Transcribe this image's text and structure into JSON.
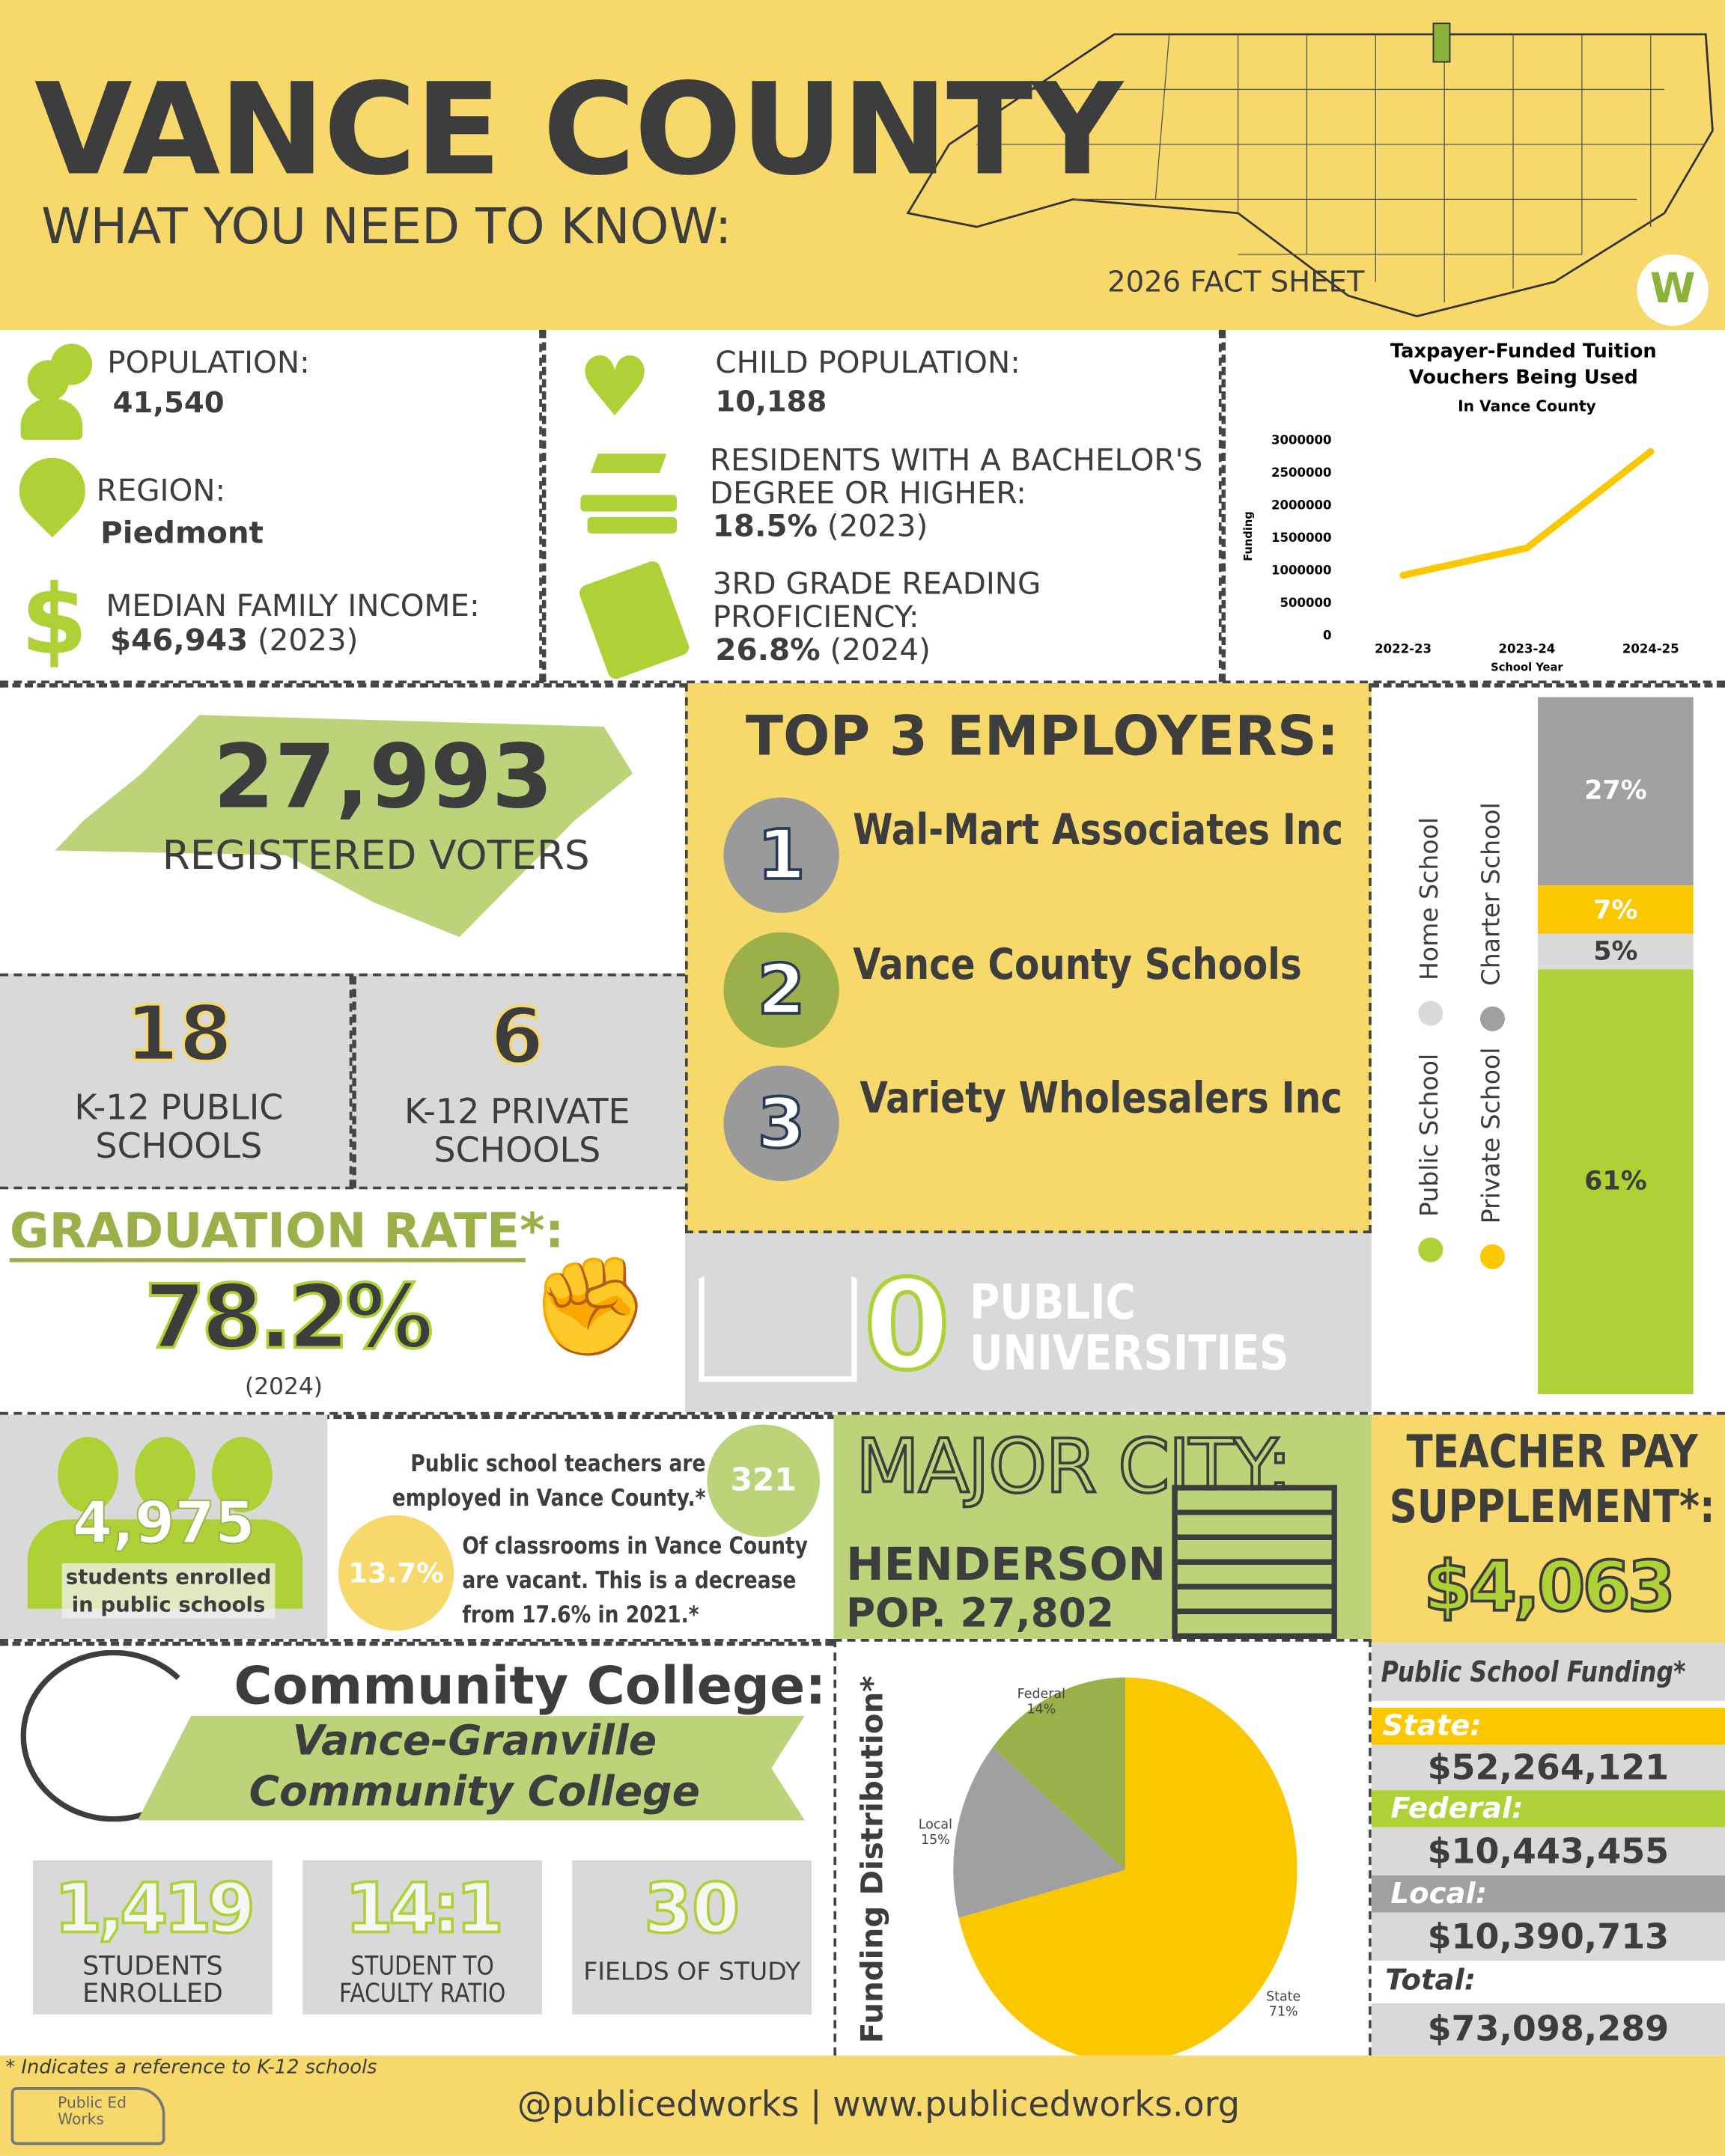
{
  "header": {
    "title": "VANCE COUNTY",
    "subtitle": "WHAT YOU NEED TO KNOW:",
    "fact_sheet": "2026 FACT SHEET",
    "logo": "W"
  },
  "stats": {
    "population_label": "POPULATION:",
    "population": "41,540",
    "region_label": "REGION:",
    "region": "Piedmont",
    "income_label": "MEDIAN FAMILY INCOME:",
    "income": "$46,943",
    "income_year": "(2023)",
    "child_label": "CHILD POPULATION:",
    "child": "10,188",
    "bachelor_label": "RESIDENTS WITH A BACHELOR'S DEGREE OR HIGHER:",
    "bachelor": "18.5%",
    "bachelor_year": "(2023)",
    "reading_label": "3RD GRADE READING PROFICIENCY:",
    "reading": "26.8%",
    "reading_year": "(2024)"
  },
  "chart_data": [
    {
      "type": "line",
      "title": "Taxpayer-Funded Tuition Vouchers Being Used",
      "subtitle": "In Vance County",
      "xlabel": "School Year",
      "ylabel": "Funding",
      "categories": [
        "2022-23",
        "2023-24",
        "2024-25"
      ],
      "values": [
        900000,
        1320000,
        2800000
      ],
      "yticks": [
        "0",
        "500000",
        "1000000",
        "1500000",
        "2000000",
        "2500000",
        "3000000"
      ],
      "ylim": [
        0,
        3000000
      ],
      "color": "#fbc800",
      "grid": false
    },
    {
      "type": "bar",
      "stacked": true,
      "series": [
        {
          "name": "Public School",
          "value": 61,
          "label": "61%",
          "color": "#aed136"
        },
        {
          "name": "Home School",
          "value": 5,
          "label": "5%",
          "color": "#d9d9d9"
        },
        {
          "name": "Private School",
          "value": 7,
          "label": "7%",
          "color": "#fbc800"
        },
        {
          "name": "Charter School",
          "value": 27,
          "label": "27%",
          "color": "#a0a0a0"
        }
      ],
      "legend": "left"
    },
    {
      "type": "pie",
      "title": "Funding Distribution*",
      "slices": [
        {
          "name": "State",
          "value": 71,
          "label": "71%",
          "color": "#fbc800"
        },
        {
          "name": "Local",
          "value": 15,
          "label": "15%",
          "color": "#a0a0a0"
        },
        {
          "name": "Federal",
          "value": 14,
          "label": "14%",
          "color": "#9bb048"
        }
      ]
    }
  ],
  "voters": {
    "count": "27,993",
    "label": "REGISTERED VOTERS"
  },
  "schools": {
    "public_count": "18",
    "public_label": "K-12 PUBLIC SCHOOLS",
    "private_count": "6",
    "private_label": "K-12 PRIVATE SCHOOLS"
  },
  "graduation": {
    "label": "GRADUATION RATE*:",
    "rate": "78.2%",
    "year": "(2024)"
  },
  "employers": {
    "title": "TOP 3 EMPLOYERS:",
    "items": [
      {
        "num": "1",
        "name": "Wal-Mart Associates Inc"
      },
      {
        "num": "2",
        "name": "Vance County Schools"
      },
      {
        "num": "3",
        "name": "Variety Wholesalers Inc"
      }
    ]
  },
  "universities": {
    "count": "0",
    "label": "PUBLIC UNIVERSITIES"
  },
  "students": {
    "count": "4,975",
    "label": "students enrolled in public schools"
  },
  "teachers": {
    "text": "Public school teachers are employed in Vance County.*",
    "count": "321",
    "vacancy": "13.7%",
    "vacancy_text": "Of classrooms in Vance County are vacant. This is a decrease from 17.6% in 2021.*"
  },
  "city": {
    "label": "MAJOR CITY:",
    "name": "HENDERSON",
    "pop": "POP. 27,802"
  },
  "teacher_pay": {
    "label": "TEACHER PAY SUPPLEMENT*:",
    "amount": "$4,063"
  },
  "college": {
    "label": "Community College:",
    "name": "Vance-Granville Community College",
    "enrolled": "1,419",
    "enrolled_label": "STUDENTS ENROLLED",
    "ratio": "14:1",
    "ratio_label": "STUDENT TO FACULTY RATIO",
    "fields": "30",
    "fields_label": "FIELDS OF STUDY"
  },
  "funding": {
    "title": "Public School Funding*",
    "state_label": "State:",
    "state": "$52,264,121",
    "federal_label": "Federal:",
    "federal": "$10,443,455",
    "local_label": "Local:",
    "local": "$10,390,713",
    "total_label": "Total:",
    "total": "$73,098,289"
  },
  "footer": {
    "note": "* Indicates a reference to K-12 schools",
    "handle": "@publicedworks | www.publicedworks.org",
    "logo": "Public Ed Works"
  },
  "colors": {
    "yellow": "#f6d86b",
    "green": "#bcd37a",
    "gray": "#d9d9d9",
    "accent_green": "#aed136",
    "accent_yellow": "#fbc800"
  }
}
